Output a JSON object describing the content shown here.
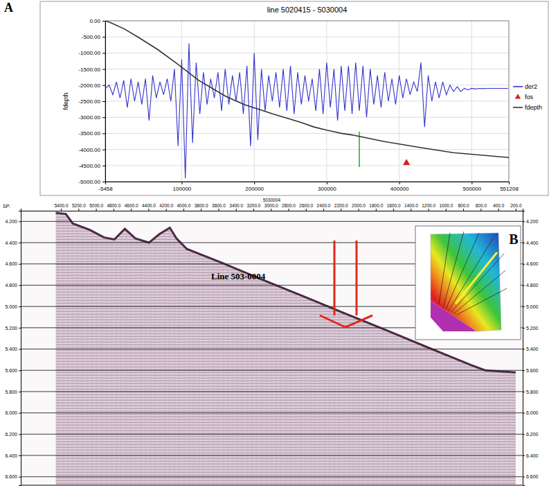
{
  "panels": [
    "A",
    "B"
  ],
  "chart_data": [
    {
      "type": "line",
      "title": "line 5020415 - 5030004",
      "ylabel": "fdepth",
      "xlim": [
        -5458,
        551208
      ],
      "xticks": [
        -5458,
        100000,
        200000,
        300000,
        400000,
        500000,
        551208
      ],
      "ylim": [
        -5000,
        0
      ],
      "yticks": [
        {
          "value": 0,
          "label": "0.00"
        },
        {
          "value": -500,
          "label": "-500.00"
        },
        {
          "value": -1000,
          "label": "-1000.00"
        },
        {
          "value": -1500,
          "label": "-1500.00"
        },
        {
          "value": -2000,
          "label": "-2000.00"
        },
        {
          "value": -2500,
          "label": "-2500.00"
        },
        {
          "value": -3000,
          "label": "-3000.00"
        },
        {
          "value": -3500,
          "label": "-3500.00"
        },
        {
          "value": -4000,
          "label": "-4000.00"
        },
        {
          "value": -4500,
          "label": "-4500.00"
        },
        {
          "value": -5000,
          "label": "-5000.00"
        }
      ],
      "grid": true,
      "legend": "right",
      "series": [
        {
          "name": "der2",
          "color": "#3333cc",
          "type": "line",
          "x": [
            -5000,
            0,
            5000,
            10000,
            15000,
            20000,
            25000,
            30000,
            35000,
            40000,
            45000,
            50000,
            55000,
            60000,
            65000,
            70000,
            75000,
            80000,
            85000,
            90000,
            95000,
            100000,
            105000,
            110000,
            115000,
            120000,
            125000,
            130000,
            135000,
            140000,
            145000,
            150000,
            155000,
            160000,
            165000,
            170000,
            175000,
            180000,
            185000,
            190000,
            195000,
            200000,
            205000,
            210000,
            215000,
            220000,
            225000,
            230000,
            235000,
            240000,
            245000,
            250000,
            255000,
            260000,
            265000,
            270000,
            275000,
            280000,
            285000,
            290000,
            295000,
            300000,
            305000,
            310000,
            315000,
            320000,
            325000,
            330000,
            335000,
            340000,
            345000,
            350000,
            355000,
            360000,
            365000,
            370000,
            375000,
            380000,
            385000,
            390000,
            395000,
            400000,
            405000,
            410000,
            415000,
            420000,
            425000,
            430000,
            435000,
            440000,
            445000,
            450000,
            455000,
            460000,
            465000,
            470000,
            475000,
            480000,
            485000,
            490000,
            495000,
            500000,
            505000,
            510000,
            515000,
            520000,
            525000,
            530000,
            535000,
            540000,
            545000,
            550000
          ],
          "values": [
            -2100,
            -2000,
            -2300,
            -1900,
            -2400,
            -1850,
            -2700,
            -1800,
            -2500,
            -1900,
            -2600,
            -1800,
            -3100,
            -1700,
            -2400,
            -1900,
            -2300,
            -1800,
            -2500,
            -1500,
            -3900,
            -1200,
            -4900,
            -700,
            -3800,
            -1300,
            -2900,
            -1600,
            -2600,
            -1800,
            -2400,
            -1600,
            -2800,
            -1500,
            -2600,
            -1700,
            -2500,
            -1600,
            -2900,
            -1400,
            -3900,
            -1000,
            -3700,
            -1500,
            -2800,
            -1700,
            -2500,
            -1600,
            -2700,
            -1500,
            -2800,
            -1400,
            -2900,
            -1600,
            -2600,
            -1700,
            -2500,
            -1800,
            -2800,
            -1500,
            -2900,
            -1300,
            -2700,
            -1500,
            -3100,
            -1400,
            -2800,
            -1400,
            -2900,
            -1300,
            -2800,
            -1400,
            -3000,
            -1500,
            -2600,
            -1700,
            -2700,
            -1600,
            -2500,
            -1800,
            -2600,
            -1700,
            -2400,
            -1800,
            -2300,
            -1900,
            -2200,
            -1300,
            -3300,
            -1700,
            -2500,
            -1900,
            -2400,
            -1900,
            -2300,
            -2000,
            -2200,
            -2050,
            -2200,
            -2100,
            -2150,
            -2100,
            -2120,
            -2100,
            -2110,
            -2100,
            -2100,
            -2100,
            -2100,
            -2100,
            -2100,
            -2100
          ]
        },
        {
          "name": "fos",
          "color": "#cc2222",
          "type": "scatter",
          "marker": "triangle",
          "x": [
            410000
          ],
          "values": [
            -4420
          ]
        },
        {
          "name": "fdepth",
          "color": "#333333",
          "type": "line",
          "x": [
            -5458,
            2000,
            20700,
            39400,
            67400,
            91700,
            123400,
            160800,
            186000,
            226200,
            263500,
            282200,
            300000,
            310200,
            320000,
            338200,
            378400,
            431600,
            474600,
            551208
          ],
          "values": [
            0,
            -60,
            -250,
            -500,
            -900,
            -1300,
            -1850,
            -2350,
            -2600,
            -2900,
            -3150,
            -3300,
            -3400,
            -3450,
            -3500,
            -3560,
            -3750,
            -3950,
            -4100,
            -4250
          ]
        }
      ],
      "vlines": [
        {
          "x": 345000,
          "values": [
            -3450,
            -4550
          ],
          "color": "#22aa22"
        }
      ]
    },
    {
      "type": "seismic_section",
      "title": "5030004",
      "xlabel": "SP:",
      "xlim": [
        5860,
        120
      ],
      "xticks": [
        {
          "value": 5400,
          "label": "5400.0"
        },
        {
          "value": 5200,
          "label": "5200.0"
        },
        {
          "value": 5000,
          "label": "5000.0"
        },
        {
          "value": 4800,
          "label": "4800.0"
        },
        {
          "value": 4600,
          "label": "4600.0"
        },
        {
          "value": 4400,
          "label": "4400.0"
        },
        {
          "value": 4200,
          "label": "4200.0"
        },
        {
          "value": 4000,
          "label": "4000.0"
        },
        {
          "value": 3800,
          "label": "3800.0"
        },
        {
          "value": 3600,
          "label": "3600.0"
        },
        {
          "value": 3400,
          "label": "3400.0"
        },
        {
          "value": 3200,
          "label": "3200.0"
        },
        {
          "value": 3000,
          "label": "3000.0"
        },
        {
          "value": 2800,
          "label": "2800.0"
        },
        {
          "value": 2600,
          "label": "2600.0"
        },
        {
          "value": 2400,
          "label": "2400.0"
        },
        {
          "value": 2200,
          "label": "2200.0"
        },
        {
          "value": 2000,
          "label": "2000.0"
        },
        {
          "value": 1800,
          "label": "1800.0"
        },
        {
          "value": 1600,
          "label": "1600.0"
        },
        {
          "value": 1400,
          "label": "1400.0"
        },
        {
          "value": 1200,
          "label": "1200.0"
        },
        {
          "value": 1000,
          "label": "1000.0"
        },
        {
          "value": 800,
          "label": "800.0"
        },
        {
          "value": 600,
          "label": "600.0"
        },
        {
          "value": 400,
          "label": "400.0"
        },
        {
          "value": 200,
          "label": "200.0"
        }
      ],
      "ylim": [
        4.1,
        6.68
      ],
      "yticks": [
        {
          "value": 4.2,
          "label": "4.200"
        },
        {
          "value": 4.4,
          "label": "4.400"
        },
        {
          "value": 4.6,
          "label": "4.600"
        },
        {
          "value": 4.8,
          "label": "4.800"
        },
        {
          "value": 5.0,
          "label": "5.000"
        },
        {
          "value": 5.2,
          "label": "5.200"
        },
        {
          "value": 5.4,
          "label": "5.400"
        },
        {
          "value": 5.6,
          "label": "5.600"
        },
        {
          "value": 5.8,
          "label": "5.800"
        },
        {
          "value": 6.0,
          "label": "6.000"
        },
        {
          "value": 6.2,
          "label": "6.200"
        },
        {
          "value": 6.4,
          "label": "6.400"
        },
        {
          "value": 6.6,
          "label": "6.600"
        }
      ],
      "grid": true,
      "series": [
        {
          "color": "#4a2a45",
          "x": [
            5460,
            5345,
            5265,
            5070,
            4910,
            4790,
            4670,
            4550,
            4395,
            4275,
            4155,
            4080,
            3960,
            3560,
            3090,
            2610,
            2140,
            1660,
            1190,
            710,
            550,
            200
          ],
          "values": [
            4.12,
            4.13,
            4.22,
            4.28,
            4.35,
            4.37,
            4.27,
            4.36,
            4.4,
            4.32,
            4.26,
            4.36,
            4.46,
            4.59,
            4.75,
            4.91,
            5.07,
            5.23,
            5.39,
            5.55,
            5.6,
            5.62
          ]
        }
      ],
      "annotations": [
        "Line 503-0004"
      ]
    }
  ]
}
